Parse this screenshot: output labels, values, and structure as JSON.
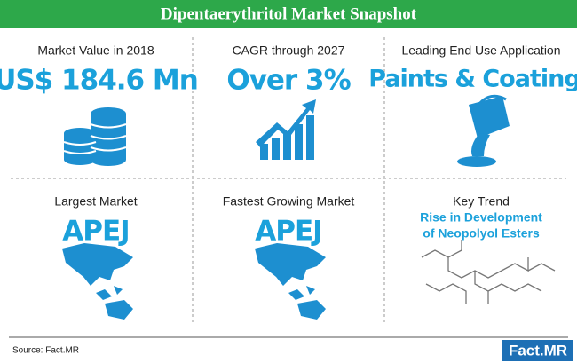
{
  "header": {
    "title": "Dipentaerythritol Market Snapshot"
  },
  "cells": [
    {
      "label": "Market Value in 2018",
      "value": "US$ 184.6 Mn"
    },
    {
      "label": "CAGR through 2027",
      "value": "Over 3%"
    },
    {
      "label": "Leading End Use Application",
      "value": "Paints & Coatings"
    },
    {
      "label": "Largest Market",
      "value": "APEJ"
    },
    {
      "label": "Fastest Growing Market",
      "value": "APEJ"
    },
    {
      "label": "Key Trend",
      "value_lines": [
        "Rise in Development",
        "of Neopolyol Esters"
      ]
    }
  ],
  "footer": {
    "source": "Source: Fact.MR",
    "logo": "Fact.MR"
  }
}
